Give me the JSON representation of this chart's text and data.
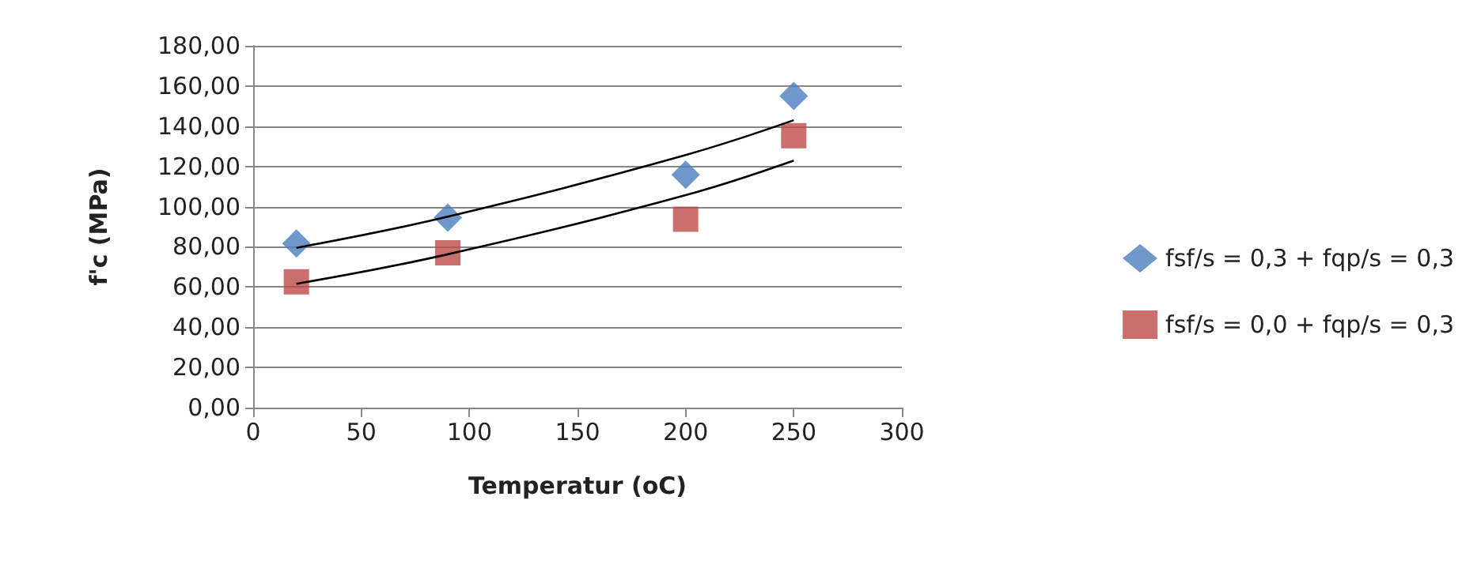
{
  "chart_data": {
    "type": "scatter",
    "xlabel": "Temperatur (oC)",
    "ylabel": "f'c (MPa)",
    "x": [
      20,
      90,
      200,
      250
    ],
    "series": [
      {
        "name": "fsf/s = 0,3 + fqp/s = 0,3",
        "color": "#4a7ebb",
        "marker": "diamond",
        "values": [
          81.6,
          94.5,
          115.8,
          155
        ]
      },
      {
        "name": "fsf/s = 0,0 + fqp/s = 0,3",
        "color": "#be4b48",
        "marker": "square",
        "values": [
          62.6,
          77,
          93.7,
          135.3
        ]
      },
      {
        "type": "line",
        "color": "#000000",
        "marker": "none",
        "x": [
          20,
          90,
          200,
          250
        ],
        "values": [
          79.5,
          95,
          125.7,
          143
        ]
      },
      {
        "type": "line",
        "color": "#000000",
        "marker": "none",
        "x": [
          20,
          90,
          200,
          250
        ],
        "values": [
          61.6,
          76.3,
          105.7,
          122.9
        ]
      }
    ],
    "xlim": [
      0,
      300
    ],
    "xticks": [
      0,
      50,
      100,
      150,
      200,
      250,
      300
    ],
    "ylim": [
      0,
      180
    ],
    "yticks": [
      {
        "value": 0,
        "label": "0,00"
      },
      {
        "value": 20,
        "label": "20,00"
      },
      {
        "value": 40,
        "label": "40,00"
      },
      {
        "value": 60,
        "label": "60,00"
      },
      {
        "value": 80,
        "label": "80,00"
      },
      {
        "value": 100,
        "label": "100,00"
      },
      {
        "value": 120,
        "label": "120,00"
      },
      {
        "value": 140,
        "label": "140,00"
      },
      {
        "value": 160,
        "label": "160,00"
      },
      {
        "value": 180,
        "label": "180,00"
      }
    ],
    "grid": "y",
    "legend": "right"
  }
}
